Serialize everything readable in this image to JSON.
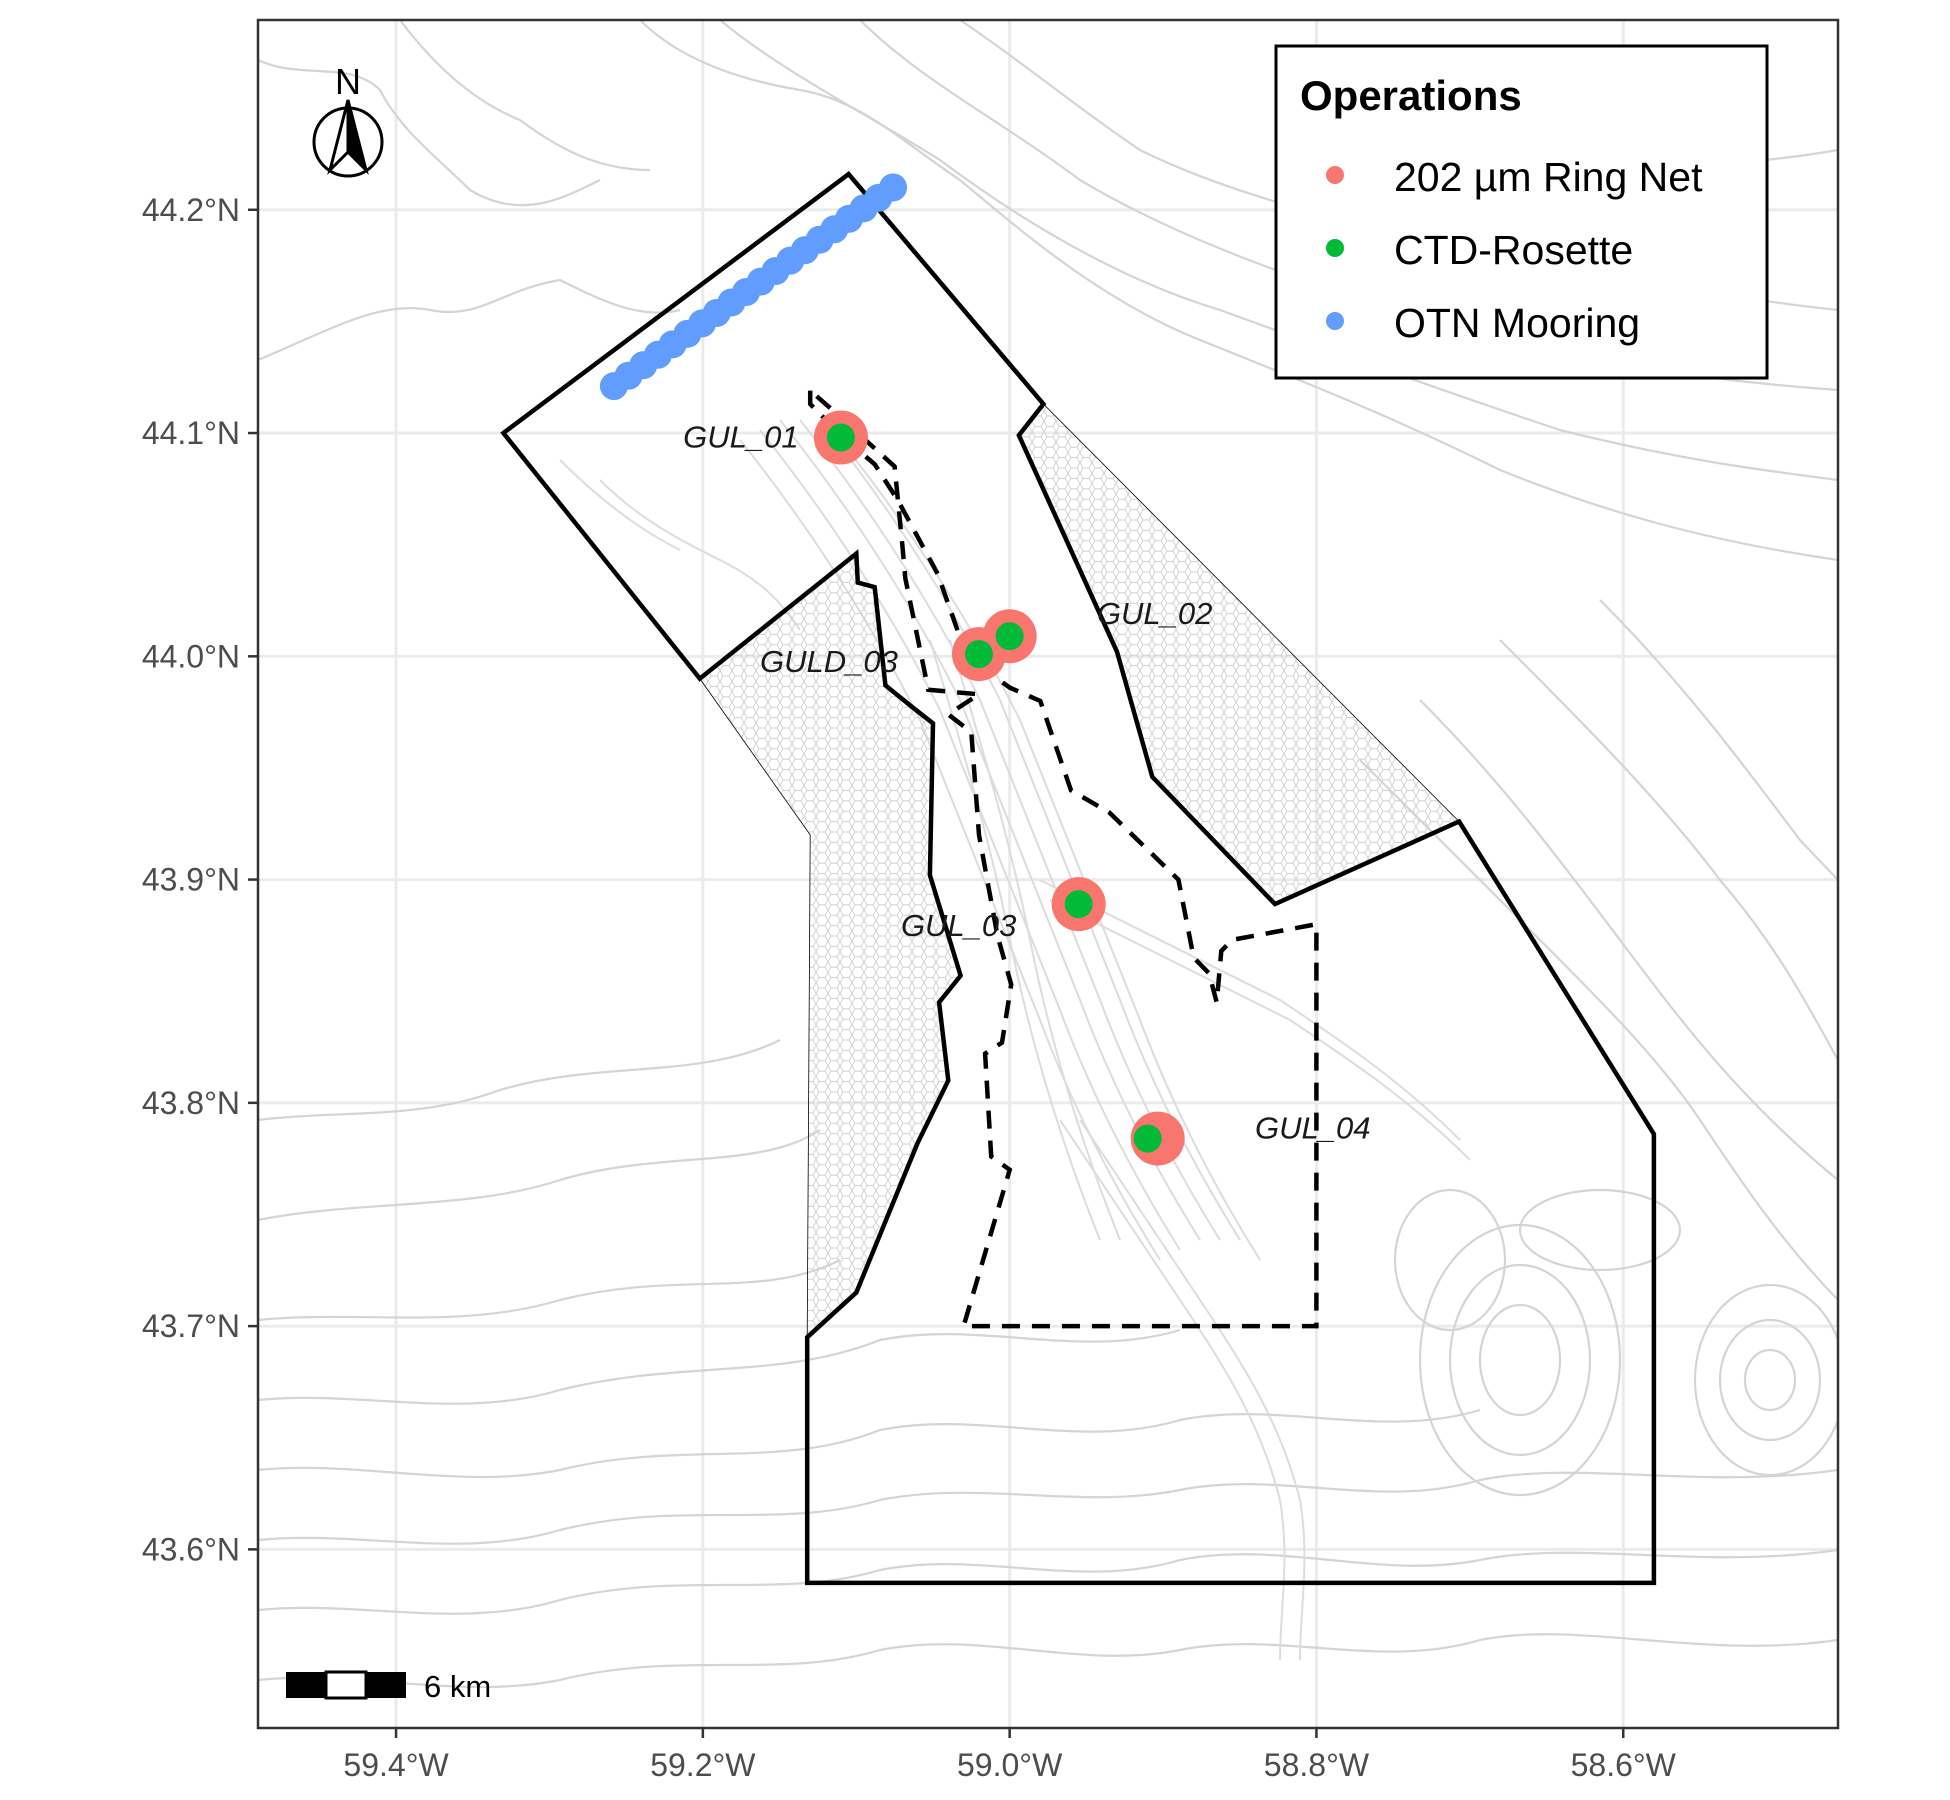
{
  "map": {
    "lon_range": [
      -59.49,
      -58.46
    ],
    "lat_range": [
      43.52,
      44.285
    ],
    "x_ticks": [
      {
        "value": -59.4,
        "label": "59.4°W"
      },
      {
        "value": -59.2,
        "label": "59.2°W"
      },
      {
        "value": -59.0,
        "label": "59.0°W"
      },
      {
        "value": -58.8,
        "label": "58.8°W"
      },
      {
        "value": -58.6,
        "label": "58.6°W"
      }
    ],
    "y_ticks": [
      {
        "value": 44.2,
        "label": "44.2°N"
      },
      {
        "value": 44.1,
        "label": "44.1°N"
      },
      {
        "value": 44.0,
        "label": "44.0°N"
      },
      {
        "value": 43.9,
        "label": "43.9°N"
      },
      {
        "value": 43.8,
        "label": "43.8°N"
      },
      {
        "value": 43.7,
        "label": "43.7°N"
      },
      {
        "value": 43.6,
        "label": "43.6°N"
      }
    ],
    "grid": true,
    "north_arrow": {
      "label": "N",
      "icon": "north-arrow-icon"
    },
    "scale_bar": {
      "label": "6 km"
    }
  },
  "legend": {
    "title": "Operations",
    "placement": "top-right",
    "items": [
      {
        "label": "202 µm Ring Net",
        "color": "#F8766D"
      },
      {
        "label": "CTD-Rosette",
        "color": "#00BA38"
      },
      {
        "label": "OTN Mooring",
        "color": "#619CFF"
      }
    ]
  },
  "stations": [
    {
      "name": "GUL_01",
      "lon": -59.11,
      "lat": 44.098
    },
    {
      "name": "GUL_02",
      "lon": -59.0,
      "lat": 44.009
    },
    {
      "name": "GULD_03",
      "lon": -59.02,
      "lat": 44.001
    },
    {
      "name": "GUL_03",
      "lon": -58.955,
      "lat": 43.889
    },
    {
      "name": "GUL_04",
      "lon": -58.91,
      "lat": 43.784
    }
  ],
  "otn_mooring": {
    "start": {
      "lon": -59.258,
      "lat": 44.121
    },
    "end": {
      "lon": -59.076,
      "lat": 44.21
    },
    "count": 20
  },
  "mpa_boundary": [
    [
      -59.33,
      44.1
    ],
    [
      -59.105,
      44.216
    ],
    [
      -58.978,
      44.113
    ],
    [
      -58.994,
      44.099
    ],
    [
      -58.93,
      44.002
    ],
    [
      -58.907,
      43.946
    ],
    [
      -58.827,
      43.889
    ],
    [
      -58.707,
      43.926
    ],
    [
      -58.58,
      43.786
    ],
    [
      -58.58,
      43.585
    ],
    [
      -59.132,
      43.585
    ],
    [
      -59.132,
      43.695
    ],
    [
      -59.1,
      43.715
    ],
    [
      -59.06,
      43.782
    ],
    [
      -59.04,
      43.81
    ],
    [
      -59.046,
      43.845
    ],
    [
      -59.032,
      43.857
    ],
    [
      -59.052,
      43.902
    ],
    [
      -59.05,
      43.97
    ],
    [
      -59.063,
      43.977
    ],
    [
      -59.081,
      43.987
    ],
    [
      -59.088,
      44.031
    ],
    [
      -59.099,
      44.033
    ],
    [
      -59.1,
      44.046
    ],
    [
      -59.202,
      43.99
    ],
    [
      -59.33,
      44.1
    ]
  ],
  "hatched_zones": [
    [
      [
        -58.978,
        44.113
      ],
      [
        -58.994,
        44.099
      ],
      [
        -58.93,
        44.002
      ],
      [
        -58.907,
        43.946
      ],
      [
        -58.827,
        43.889
      ],
      [
        -58.707,
        43.926
      ]
    ],
    [
      [
        -59.202,
        43.99
      ],
      [
        -59.13,
        43.92
      ],
      [
        -59.132,
        43.695
      ],
      [
        -59.1,
        43.715
      ],
      [
        -59.06,
        43.782
      ],
      [
        -59.04,
        43.81
      ],
      [
        -59.046,
        43.845
      ],
      [
        -59.032,
        43.857
      ],
      [
        -59.052,
        43.902
      ],
      [
        -59.05,
        43.97
      ],
      [
        -59.063,
        43.977
      ],
      [
        -59.081,
        43.987
      ],
      [
        -59.088,
        44.031
      ],
      [
        -59.099,
        44.033
      ],
      [
        -59.1,
        44.046
      ]
    ]
  ],
  "core_zone": [
    [
      -59.13,
      44.119
    ],
    [
      -59.13,
      44.113
    ],
    [
      -59.11,
      44.099
    ],
    [
      -59.088,
      44.086
    ],
    [
      -59.073,
      44.07
    ],
    [
      -59.047,
      44.037
    ],
    [
      -59.028,
      44.0
    ],
    [
      -59.0,
      43.986
    ],
    [
      -58.98,
      43.98
    ],
    [
      -58.96,
      43.94
    ],
    [
      -58.935,
      43.93
    ],
    [
      -58.89,
      43.9
    ],
    [
      -58.88,
      43.865
    ],
    [
      -58.87,
      43.858
    ],
    [
      -58.865,
      43.845
    ],
    [
      -58.862,
      43.868
    ],
    [
      -58.855,
      43.873
    ],
    [
      -58.8,
      43.88
    ],
    [
      -58.8,
      43.7
    ],
    [
      -59.03,
      43.7
    ],
    [
      -59.0,
      43.77
    ],
    [
      -59.012,
      43.776
    ],
    [
      -59.016,
      43.822
    ],
    [
      -59.005,
      43.827
    ],
    [
      -58.999,
      43.853
    ],
    [
      -59.008,
      43.875
    ],
    [
      -59.02,
      43.92
    ],
    [
      -59.025,
      43.966
    ],
    [
      -59.04,
      43.974
    ],
    [
      -59.02,
      43.983
    ],
    [
      -59.053,
      43.985
    ],
    [
      -59.068,
      44.035
    ],
    [
      -59.07,
      44.05
    ],
    [
      -59.075,
      44.085
    ],
    [
      -59.115,
      44.11
    ],
    [
      -59.13,
      44.119
    ]
  ]
}
